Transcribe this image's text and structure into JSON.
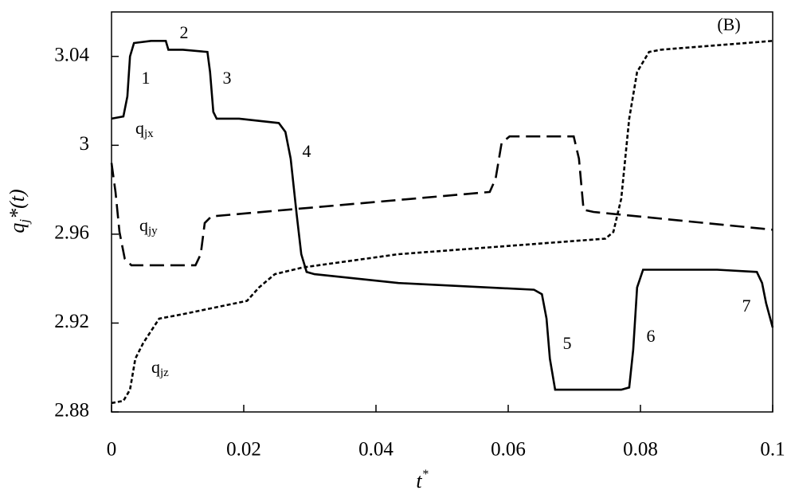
{
  "chart_data": {
    "type": "line",
    "panel_label": "(B)",
    "xlabel": {
      "base": "t",
      "sup": "*"
    },
    "ylabel": {
      "base": "q",
      "sub": "j",
      "rest": "*(t)"
    },
    "xlim": [
      0,
      0.1
    ],
    "ylim": [
      2.88,
      3.06
    ],
    "xticks": [
      0,
      0.02,
      0.04,
      0.06,
      0.08,
      0.1
    ],
    "yticks": [
      2.88,
      2.92,
      2.96,
      3,
      3.04
    ],
    "series": [
      {
        "label": {
          "base": "q",
          "sub": "jx"
        },
        "color": "#000000",
        "style": "solid",
        "x": [
          0,
          0.0018,
          0.0024,
          0.0028,
          0.0034,
          0.006,
          0.0082,
          0.0086,
          0.0108,
          0.0145,
          0.0149,
          0.0154,
          0.0159,
          0.0193,
          0.0253,
          0.0263,
          0.0271,
          0.028,
          0.0287,
          0.0295,
          0.0307,
          0.0434,
          0.0639,
          0.0651,
          0.0658,
          0.0663,
          0.0671,
          0.0771,
          0.0783,
          0.0789,
          0.0795,
          0.0804,
          0.0916,
          0.0976,
          0.0984,
          0.099,
          0.1
        ],
        "values": [
          3.012,
          3.013,
          3.022,
          3.04,
          3.046,
          3.047,
          3.047,
          3.043,
          3.043,
          3.042,
          3.033,
          3.015,
          3.012,
          3.012,
          3.01,
          3.006,
          2.994,
          2.969,
          2.951,
          2.943,
          2.942,
          2.938,
          2.935,
          2.933,
          2.922,
          2.904,
          2.89,
          2.89,
          2.891,
          2.908,
          2.936,
          2.944,
          2.944,
          2.943,
          2.938,
          2.929,
          2.918
        ]
      },
      {
        "label": {
          "base": "q",
          "sub": "jy"
        },
        "color": "#000000",
        "style": "dashed",
        "x": [
          0,
          0.0006,
          0.0012,
          0.002,
          0.003,
          0.0127,
          0.0135,
          0.0141,
          0.0151,
          0.0572,
          0.0581,
          0.059,
          0.0602,
          0.0699,
          0.0707,
          0.0714,
          0.0729,
          0.1
        ],
        "values": [
          2.992,
          2.979,
          2.961,
          2.949,
          2.946,
          2.946,
          2.951,
          2.965,
          2.968,
          2.979,
          2.985,
          3.001,
          3.004,
          3.004,
          2.994,
          2.971,
          2.97,
          2.962
        ]
      },
      {
        "label": {
          "base": "q",
          "sub": "jz"
        },
        "color": "#000000",
        "style": "dotted",
        "x": [
          0,
          0.0018,
          0.0028,
          0.0036,
          0.0048,
          0.0072,
          0.0108,
          0.0205,
          0.0223,
          0.0247,
          0.0289,
          0.0434,
          0.0747,
          0.0759,
          0.0771,
          0.0783,
          0.0795,
          0.0813,
          0.0831,
          0.1
        ],
        "values": [
          2.884,
          2.885,
          2.89,
          2.904,
          2.911,
          2.922,
          2.924,
          2.93,
          2.936,
          2.942,
          2.945,
          2.951,
          2.958,
          2.961,
          2.976,
          3.012,
          3.033,
          3.042,
          3.043,
          3.047
        ]
      }
    ],
    "annotations": [
      "1",
      "2",
      "3",
      "4",
      "5",
      "6",
      "7"
    ]
  }
}
